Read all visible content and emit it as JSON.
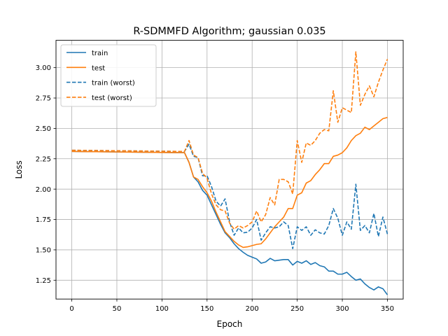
{
  "chart_data": {
    "type": "line",
    "title": "R-SDMMFD Algorithm; gaussian 0.035",
    "xlabel": "Epoch",
    "ylabel": "Loss",
    "xlim": [
      -17.5,
      367.5
    ],
    "ylim": [
      1.095,
      3.225
    ],
    "xticks": [
      0,
      50,
      100,
      150,
      200,
      250,
      300,
      350
    ],
    "yticks": [
      1.25,
      1.5,
      1.75,
      2.0,
      2.25,
      2.5,
      2.75,
      3.0
    ],
    "xtick_labels": [
      "0",
      "50",
      "100",
      "150",
      "200",
      "250",
      "300",
      "350"
    ],
    "ytick_labels": [
      "1.25",
      "1.50",
      "1.75",
      "2.00",
      "2.25",
      "2.50",
      "2.75",
      "3.00"
    ],
    "grid": true,
    "legend_position": "top-left",
    "series": [
      {
        "name": "train",
        "color": "#1f77b4",
        "dash": "solid",
        "points": [
          [
            0,
            2.31
          ],
          [
            125,
            2.3
          ],
          [
            130,
            2.22
          ],
          [
            135,
            2.1
          ],
          [
            140,
            2.06
          ],
          [
            145,
            1.99
          ],
          [
            150,
            1.95
          ],
          [
            155,
            1.87
          ],
          [
            160,
            1.79
          ],
          [
            165,
            1.71
          ],
          [
            170,
            1.64
          ],
          [
            175,
            1.6
          ],
          [
            180,
            1.55
          ],
          [
            185,
            1.51
          ],
          [
            190,
            1.48
          ],
          [
            195,
            1.455
          ],
          [
            200,
            1.44
          ],
          [
            205,
            1.425
          ],
          [
            210,
            1.39
          ],
          [
            215,
            1.4
          ],
          [
            220,
            1.43
          ],
          [
            225,
            1.41
          ],
          [
            230,
            1.415
          ],
          [
            235,
            1.42
          ],
          [
            240,
            1.42
          ],
          [
            245,
            1.375
          ],
          [
            250,
            1.405
          ],
          [
            255,
            1.39
          ],
          [
            260,
            1.41
          ],
          [
            265,
            1.38
          ],
          [
            270,
            1.395
          ],
          [
            275,
            1.37
          ],
          [
            280,
            1.36
          ],
          [
            285,
            1.325
          ],
          [
            290,
            1.325
          ],
          [
            295,
            1.3
          ],
          [
            300,
            1.3
          ],
          [
            305,
            1.315
          ],
          [
            310,
            1.28
          ],
          [
            315,
            1.25
          ],
          [
            320,
            1.26
          ],
          [
            325,
            1.22
          ],
          [
            330,
            1.19
          ],
          [
            335,
            1.17
          ],
          [
            340,
            1.195
          ],
          [
            345,
            1.18
          ],
          [
            350,
            1.13
          ]
        ]
      },
      {
        "name": "test",
        "color": "#ff7f0e",
        "dash": "solid",
        "points": [
          [
            0,
            2.31
          ],
          [
            125,
            2.3
          ],
          [
            130,
            2.22
          ],
          [
            135,
            2.1
          ],
          [
            140,
            2.08
          ],
          [
            145,
            2.02
          ],
          [
            150,
            1.97
          ],
          [
            155,
            1.9
          ],
          [
            160,
            1.81
          ],
          [
            165,
            1.73
          ],
          [
            170,
            1.65
          ],
          [
            175,
            1.61
          ],
          [
            180,
            1.57
          ],
          [
            185,
            1.54
          ],
          [
            190,
            1.52
          ],
          [
            195,
            1.525
          ],
          [
            200,
            1.535
          ],
          [
            205,
            1.545
          ],
          [
            210,
            1.55
          ],
          [
            215,
            1.59
          ],
          [
            220,
            1.64
          ],
          [
            225,
            1.69
          ],
          [
            230,
            1.73
          ],
          [
            235,
            1.77
          ],
          [
            240,
            1.84
          ],
          [
            245,
            1.84
          ],
          [
            250,
            1.95
          ],
          [
            255,
            1.97
          ],
          [
            260,
            2.05
          ],
          [
            265,
            2.07
          ],
          [
            270,
            2.12
          ],
          [
            275,
            2.16
          ],
          [
            280,
            2.21
          ],
          [
            285,
            2.21
          ],
          [
            290,
            2.27
          ],
          [
            295,
            2.28
          ],
          [
            300,
            2.3
          ],
          [
            305,
            2.34
          ],
          [
            310,
            2.4
          ],
          [
            315,
            2.44
          ],
          [
            320,
            2.46
          ],
          [
            325,
            2.51
          ],
          [
            330,
            2.49
          ],
          [
            335,
            2.52
          ],
          [
            340,
            2.55
          ],
          [
            345,
            2.58
          ],
          [
            350,
            2.59
          ]
        ]
      },
      {
        "name": "train (worst)",
        "color": "#1f77b4",
        "dash": "dashed",
        "points": [
          [
            0,
            2.32
          ],
          [
            125,
            2.31
          ],
          [
            130,
            2.37
          ],
          [
            135,
            2.27
          ],
          [
            140,
            2.26
          ],
          [
            145,
            2.11
          ],
          [
            150,
            2.11
          ],
          [
            155,
            2.02
          ],
          [
            160,
            1.9
          ],
          [
            165,
            1.86
          ],
          [
            170,
            1.92
          ],
          [
            175,
            1.73
          ],
          [
            180,
            1.62
          ],
          [
            185,
            1.68
          ],
          [
            190,
            1.64
          ],
          [
            195,
            1.645
          ],
          [
            200,
            1.68
          ],
          [
            205,
            1.75
          ],
          [
            210,
            1.58
          ],
          [
            215,
            1.64
          ],
          [
            220,
            1.69
          ],
          [
            225,
            1.68
          ],
          [
            230,
            1.69
          ],
          [
            235,
            1.73
          ],
          [
            240,
            1.7
          ],
          [
            245,
            1.51
          ],
          [
            250,
            1.69
          ],
          [
            255,
            1.66
          ],
          [
            260,
            1.69
          ],
          [
            265,
            1.62
          ],
          [
            270,
            1.665
          ],
          [
            275,
            1.64
          ],
          [
            280,
            1.63
          ],
          [
            285,
            1.7
          ],
          [
            290,
            1.84
          ],
          [
            295,
            1.76
          ],
          [
            300,
            1.62
          ],
          [
            305,
            1.73
          ],
          [
            310,
            1.67
          ],
          [
            315,
            2.04
          ],
          [
            320,
            1.66
          ],
          [
            325,
            1.7
          ],
          [
            330,
            1.64
          ],
          [
            335,
            1.8
          ],
          [
            340,
            1.61
          ],
          [
            345,
            1.77
          ],
          [
            350,
            1.63
          ]
        ]
      },
      {
        "name": "test (worst)",
        "color": "#ff7f0e",
        "dash": "dashed",
        "points": [
          [
            0,
            2.32
          ],
          [
            125,
            2.31
          ],
          [
            130,
            2.4
          ],
          [
            135,
            2.28
          ],
          [
            140,
            2.26
          ],
          [
            145,
            2.13
          ],
          [
            150,
            2.09
          ],
          [
            155,
            1.96
          ],
          [
            160,
            1.87
          ],
          [
            165,
            1.83
          ],
          [
            170,
            1.82
          ],
          [
            175,
            1.72
          ],
          [
            180,
            1.67
          ],
          [
            185,
            1.7
          ],
          [
            190,
            1.68
          ],
          [
            195,
            1.7
          ],
          [
            200,
            1.73
          ],
          [
            205,
            1.82
          ],
          [
            210,
            1.73
          ],
          [
            215,
            1.79
          ],
          [
            220,
            1.93
          ],
          [
            225,
            1.87
          ],
          [
            230,
            2.08
          ],
          [
            235,
            2.08
          ],
          [
            240,
            2.06
          ],
          [
            245,
            1.96
          ],
          [
            250,
            2.4
          ],
          [
            255,
            2.22
          ],
          [
            260,
            2.38
          ],
          [
            265,
            2.36
          ],
          [
            270,
            2.4
          ],
          [
            275,
            2.46
          ],
          [
            280,
            2.49
          ],
          [
            285,
            2.48
          ],
          [
            290,
            2.81
          ],
          [
            295,
            2.55
          ],
          [
            300,
            2.67
          ],
          [
            305,
            2.65
          ],
          [
            310,
            2.63
          ],
          [
            315,
            3.13
          ],
          [
            320,
            2.69
          ],
          [
            325,
            2.78
          ],
          [
            330,
            2.85
          ],
          [
            335,
            2.76
          ],
          [
            340,
            2.88
          ],
          [
            345,
            2.98
          ],
          [
            350,
            3.07
          ]
        ]
      }
    ]
  }
}
